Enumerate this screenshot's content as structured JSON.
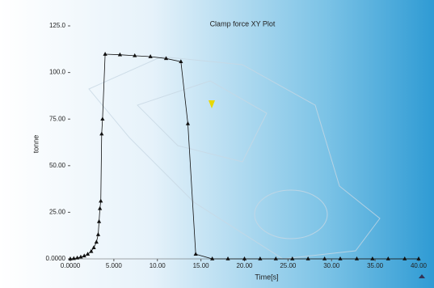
{
  "chart_data": {
    "type": "line",
    "title": "Clamp force XY Plot",
    "x_label": "Time[s]",
    "y_label": "tonne",
    "x": [
      0,
      0.4,
      0.8,
      1.2,
      1.6,
      2.0,
      2.4,
      2.7,
      3.0,
      3.2,
      3.3,
      3.4,
      3.5,
      3.6,
      3.7,
      4.0,
      5.7,
      7.4,
      9.2,
      11.0,
      12.7,
      13.5,
      14.4,
      16.3,
      18.1,
      20.0,
      21.8,
      23.6,
      25.5,
      27.3,
      29.2,
      31.0,
      32.9,
      34.7,
      36.5,
      38.4,
      40.0
    ],
    "values": [
      0,
      0.2,
      0.5,
      1,
      1.6,
      2.5,
      4,
      6,
      9,
      13,
      20,
      27,
      31,
      67,
      75,
      109.8,
      109.5,
      109,
      108.5,
      107.5,
      105.8,
      72.5,
      2.5,
      0,
      0,
      0,
      0,
      0,
      0,
      0,
      0,
      0,
      0,
      0,
      0,
      0,
      0
    ],
    "color": "#111111",
    "xlim": [
      0,
      40
    ],
    "ylim": [
      0,
      125
    ],
    "xticks": [
      {
        "value": 0,
        "label": "0.0000"
      },
      {
        "value": 5,
        "label": "5.000"
      },
      {
        "value": 10,
        "label": "10.00"
      },
      {
        "value": 15,
        "label": "15.00"
      },
      {
        "value": 20,
        "label": "20.00"
      },
      {
        "value": 25,
        "label": "25.00"
      },
      {
        "value": 30,
        "label": "30.00"
      },
      {
        "value": 35,
        "label": "35.00"
      },
      {
        "value": 40,
        "label": "40.00"
      }
    ],
    "yticks": [
      {
        "value": 0,
        "label": "0.0000"
      },
      {
        "value": 25,
        "label": "25.00"
      },
      {
        "value": 50,
        "label": "50.00"
      },
      {
        "value": 75,
        "label": "75.00"
      },
      {
        "value": 100,
        "label": "100.0"
      },
      {
        "value": 125,
        "label": "125.0"
      }
    ]
  }
}
